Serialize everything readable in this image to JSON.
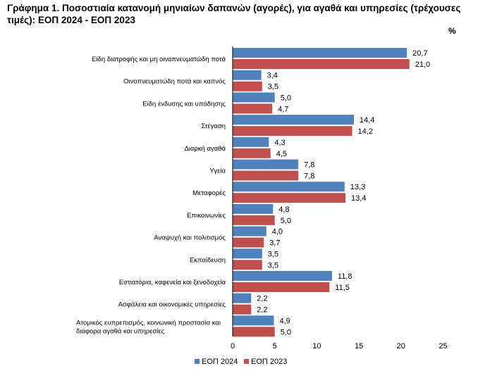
{
  "title": "Γράφημα 1. Ποσοστιαία κατανομή μηνιαίων δαπανών (αγορές), για αγαθά και υπηρεσίες (τρέχουσες τιμές): ΕΟΠ 2024 - ΕΟΠ 2023",
  "unit": "%",
  "chart_data": {
    "type": "bar",
    "orientation": "horizontal",
    "categories": [
      "Είδη διατροφής και μη οινοπνευματώδη ποτά",
      "Οινοπνευματώδη ποτά και καπνός",
      "Είδη ένδυσης και υπόδησης",
      "Στέγαση",
      "Διαρκή αγαθά",
      "Υγεία",
      "Μεταφορές",
      "Επικοινωνίες",
      "Αναψυχή και πολιτισμός",
      "Εκπαίδευση",
      "Εστιατόρια, καφενεία και ξενοδοχεία",
      "Ασφάλεια και  οικονομικές υπηρεσίες",
      "Ατομικός ευπρεπισμός, κοινωνική προστασία και διάφορα αγαθά και υπηρεσίες"
    ],
    "series": [
      {
        "name": "ΕΟΠ 2024",
        "color": "#4F81BD",
        "values": [
          20.7,
          3.4,
          5.0,
          14.4,
          4.3,
          7.8,
          13.3,
          4.8,
          4.0,
          3.5,
          11.8,
          2.2,
          4.9
        ],
        "labels": [
          "20,7",
          "3,4",
          "5,0",
          "14,4",
          "4,3",
          "7,8",
          "13,3",
          "4,8",
          "4,0",
          "3,5",
          "11,8",
          "2,2",
          "4,9"
        ]
      },
      {
        "name": "ΕΟΠ 2023",
        "color": "#C0504D",
        "values": [
          21.0,
          3.5,
          4.7,
          14.2,
          4.5,
          7.8,
          13.4,
          5.0,
          3.7,
          3.5,
          11.5,
          2.2,
          5.0
        ],
        "labels": [
          "21,0",
          "3,5",
          "4,7",
          "14,2",
          "4,5",
          "7,8",
          "13,4",
          "5,0",
          "3,7",
          "3,5",
          "11,5",
          "2,2",
          "5,0"
        ]
      }
    ],
    "xlim": [
      0,
      25
    ],
    "xticks": [
      0,
      5,
      10,
      15,
      20,
      25
    ],
    "xtick_labels": [
      "0",
      "5",
      "10",
      "15",
      "20",
      "25"
    ],
    "grid": false,
    "legend_position": "bottom"
  }
}
